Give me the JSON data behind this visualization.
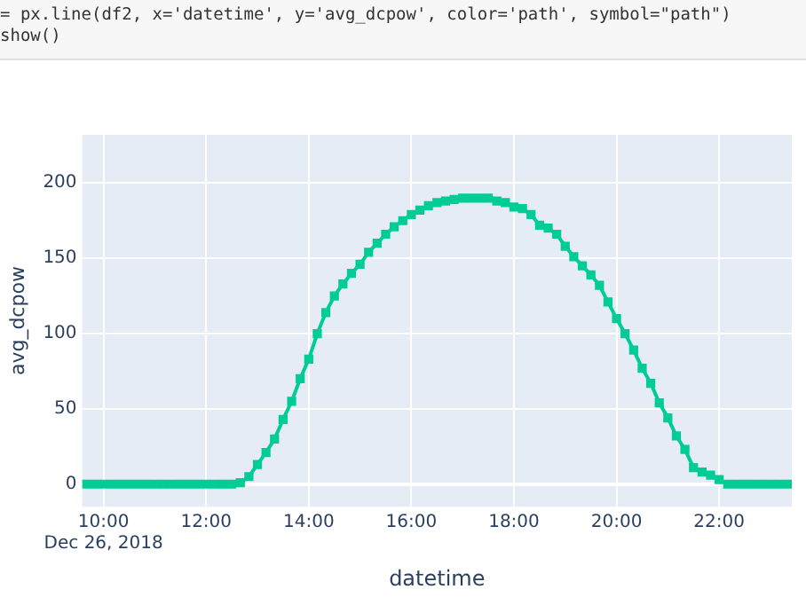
{
  "chart_data": {
    "type": "line",
    "xlabel": "datetime",
    "ylabel": "avg_dcpow",
    "annotations": [
      "= px.line(df2, x='datetime', y='avg_dcpow', color='path', symbol=\"path\")",
      "show()"
    ],
    "x": [
      "2018-12-26T09:40",
      "2018-12-26T09:50",
      "2018-12-26T10:00",
      "2018-12-26T10:10",
      "2018-12-26T10:20",
      "2018-12-26T10:30",
      "2018-12-26T10:40",
      "2018-12-26T10:50",
      "2018-12-26T11:00",
      "2018-12-26T11:10",
      "2018-12-26T11:20",
      "2018-12-26T11:30",
      "2018-12-26T11:40",
      "2018-12-26T11:50",
      "2018-12-26T12:00",
      "2018-12-26T12:10",
      "2018-12-26T12:20",
      "2018-12-26T12:30",
      "2018-12-26T12:40",
      "2018-12-26T12:50",
      "2018-12-26T13:00",
      "2018-12-26T13:10",
      "2018-12-26T13:20",
      "2018-12-26T13:30",
      "2018-12-26T13:40",
      "2018-12-26T13:50",
      "2018-12-26T14:00",
      "2018-12-26T14:10",
      "2018-12-26T14:20",
      "2018-12-26T14:30",
      "2018-12-26T14:40",
      "2018-12-26T14:50",
      "2018-12-26T15:00",
      "2018-12-26T15:10",
      "2018-12-26T15:20",
      "2018-12-26T15:30",
      "2018-12-26T15:40",
      "2018-12-26T15:50",
      "2018-12-26T16:00",
      "2018-12-26T16:10",
      "2018-12-26T16:20",
      "2018-12-26T16:30",
      "2018-12-26T16:40",
      "2018-12-26T16:50",
      "2018-12-26T17:00",
      "2018-12-26T17:10",
      "2018-12-26T17:20",
      "2018-12-26T17:30",
      "2018-12-26T17:40",
      "2018-12-26T17:50",
      "2018-12-26T18:00",
      "2018-12-26T18:10",
      "2018-12-26T18:20",
      "2018-12-26T18:30",
      "2018-12-26T18:40",
      "2018-12-26T18:50",
      "2018-12-26T19:00",
      "2018-12-26T19:10",
      "2018-12-26T19:20",
      "2018-12-26T19:30",
      "2018-12-26T19:40",
      "2018-12-26T19:50",
      "2018-12-26T20:00",
      "2018-12-26T20:10",
      "2018-12-26T20:20",
      "2018-12-26T20:30",
      "2018-12-26T20:40",
      "2018-12-26T20:50",
      "2018-12-26T21:00",
      "2018-12-26T21:10",
      "2018-12-26T21:20",
      "2018-12-26T21:30",
      "2018-12-26T21:40",
      "2018-12-26T21:50",
      "2018-12-26T22:00",
      "2018-12-26T22:10",
      "2018-12-26T22:20",
      "2018-12-26T22:30",
      "2018-12-26T22:40",
      "2018-12-26T22:50",
      "2018-12-26T23:00",
      "2018-12-26T23:10",
      "2018-12-26T23:20"
    ],
    "series": [
      {
        "color": "#00cc96",
        "values": [
          0,
          0,
          0,
          0,
          0,
          0,
          0,
          0,
          0,
          0,
          0,
          0,
          0,
          0,
          0,
          0,
          0,
          0,
          1,
          5,
          13,
          21,
          30,
          43,
          55,
          70,
          83,
          100,
          114,
          125,
          133,
          140,
          146,
          154,
          160,
          166,
          171,
          175,
          179,
          182,
          185,
          187,
          188,
          189,
          190,
          190,
          190,
          190,
          188,
          187,
          184,
          183,
          179,
          172,
          170,
          166,
          158,
          151,
          145,
          139,
          132,
          121,
          110,
          100,
          89,
          77,
          67,
          54,
          44,
          32,
          23,
          11,
          8,
          6,
          3,
          0,
          0,
          0,
          0,
          0,
          0,
          0,
          0
        ]
      }
    ],
    "xlim": [
      "2018-12-26T09:35",
      "2018-12-26T23:25"
    ],
    "xticks": [
      {
        "value": "2018-12-26T10:00",
        "label": "10:00\nDec 26, 2018"
      },
      {
        "value": "2018-12-26T12:00",
        "label": "12:00"
      },
      {
        "value": "2018-12-26T14:00",
        "label": "14:00"
      },
      {
        "value": "2018-12-26T16:00",
        "label": "16:00"
      },
      {
        "value": "2018-12-26T18:00",
        "label": "18:00"
      },
      {
        "value": "2018-12-26T20:00",
        "label": "20:00"
      },
      {
        "value": "2018-12-26T22:00",
        "label": "22:00"
      }
    ],
    "ylim": [
      -15,
      232
    ],
    "yticks": [
      0,
      50,
      100,
      150,
      200
    ],
    "grid": true,
    "legend": false,
    "marker": "square",
    "line_style": "solid"
  }
}
